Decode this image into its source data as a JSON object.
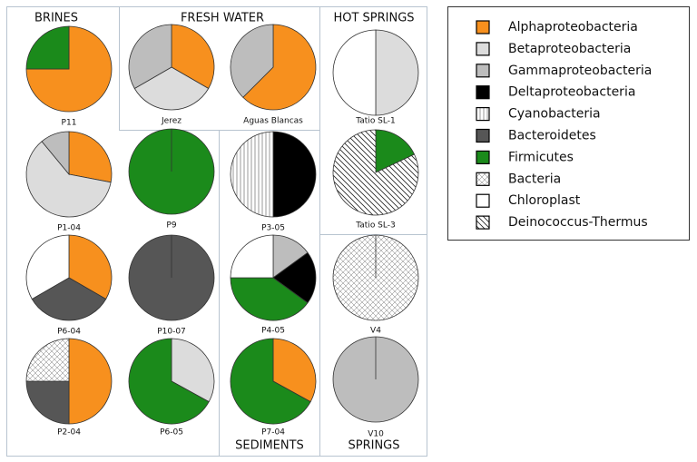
{
  "panels": [
    {
      "title": "BRINES"
    },
    {
      "title": "FRESH WATER"
    },
    {
      "title": "HOT SPRINGS"
    },
    {
      "title": "SEDIMENTS"
    },
    {
      "title": "SPRINGS"
    }
  ],
  "legend": {
    "series": [
      {
        "name": "Alphaproteobacteria",
        "color": "#f7901e",
        "pattern": "none"
      },
      {
        "name": "Betaproteobacteria",
        "color": "#dcdcdc",
        "pattern": "none"
      },
      {
        "name": "Gammaproteobacteria",
        "color": "#bdbdbd",
        "pattern": "none"
      },
      {
        "name": "Deltaproteobacteria",
        "color": "#000000",
        "pattern": "none"
      },
      {
        "name": "Cyanobacteria",
        "color": "#ffffff",
        "pattern": "vertical"
      },
      {
        "name": "Bacteroidetes",
        "color": "#565656",
        "pattern": "none"
      },
      {
        "name": "Firmicutes",
        "color": "#1b8a1b",
        "pattern": "none"
      },
      {
        "name": "Bacteria",
        "color": "#ffffff",
        "pattern": "cross"
      },
      {
        "name": "Chloroplast",
        "color": "#ffffff",
        "pattern": "none"
      },
      {
        "name": "Deinococcus-Thermus",
        "color": "#ffffff",
        "pattern": "diagonal"
      }
    ]
  },
  "chart_data": [
    {
      "type": "pie",
      "title": "P11",
      "categories": [
        "Alphaproteobacteria",
        "Firmicutes"
      ],
      "values": [
        75,
        25
      ]
    },
    {
      "type": "pie",
      "title": "Jerez",
      "categories": [
        "Alphaproteobacteria",
        "Betaproteobacteria",
        "Gammaproteobacteria"
      ],
      "values": [
        33.3,
        33.3,
        33.3
      ]
    },
    {
      "type": "pie",
      "title": "Aguas Blancas",
      "categories": [
        "Alphaproteobacteria",
        "Gammaproteobacteria"
      ],
      "values": [
        62.5,
        37.5
      ]
    },
    {
      "type": "pie",
      "title": "Tatio SL-1",
      "categories": [
        "Betaproteobacteria",
        "Chloroplast"
      ],
      "values": [
        50,
        50
      ]
    },
    {
      "type": "pie",
      "title": "P1-04",
      "categories": [
        "Alphaproteobacteria",
        "Betaproteobacteria",
        "Gammaproteobacteria"
      ],
      "values": [
        28,
        61,
        11
      ]
    },
    {
      "type": "pie",
      "title": "P9",
      "categories": [
        "Firmicutes"
      ],
      "values": [
        100
      ]
    },
    {
      "type": "pie",
      "title": "P3-05",
      "categories": [
        "Deltaproteobacteria",
        "Cyanobacteria"
      ],
      "values": [
        50,
        50
      ]
    },
    {
      "type": "pie",
      "title": "Tatio SL-3",
      "categories": [
        "Firmicutes",
        "Deinococcus-Thermus"
      ],
      "values": [
        18,
        82
      ]
    },
    {
      "type": "pie",
      "title": "P6-04",
      "categories": [
        "Alphaproteobacteria",
        "Bacteroidetes",
        "Chloroplast"
      ],
      "values": [
        33.3,
        33.3,
        33.3
      ]
    },
    {
      "type": "pie",
      "title": "P10-07",
      "categories": [
        "Bacteroidetes"
      ],
      "values": [
        100
      ]
    },
    {
      "type": "pie",
      "title": "P4-05",
      "categories": [
        "Gammaproteobacteria",
        "Deltaproteobacteria",
        "Firmicutes",
        "Chloroplast"
      ],
      "values": [
        15,
        20,
        40,
        25
      ]
    },
    {
      "type": "pie",
      "title": "V4",
      "categories": [
        "Bacteria"
      ],
      "values": [
        100
      ]
    },
    {
      "type": "pie",
      "title": "P2-04",
      "categories": [
        "Alphaproteobacteria",
        "Bacteroidetes",
        "Bacteria"
      ],
      "values": [
        50,
        25,
        25
      ]
    },
    {
      "type": "pie",
      "title": "P6-05",
      "categories": [
        "Betaproteobacteria",
        "Firmicutes"
      ],
      "values": [
        33,
        67
      ]
    },
    {
      "type": "pie",
      "title": "P7-04",
      "categories": [
        "Alphaproteobacteria",
        "Firmicutes"
      ],
      "values": [
        33,
        67
      ]
    },
    {
      "type": "pie",
      "title": "V10",
      "categories": [
        "Gammaproteobacteria"
      ],
      "values": [
        100
      ]
    }
  ]
}
